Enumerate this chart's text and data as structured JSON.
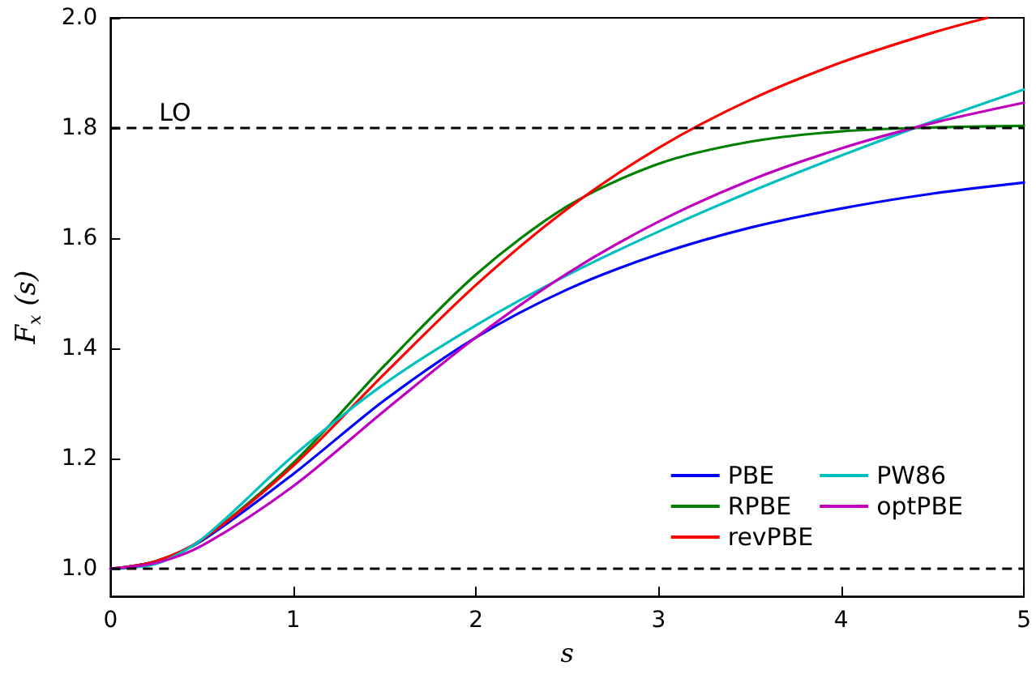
{
  "chart_data": {
    "type": "line",
    "xlabel": "s",
    "ylabel": "F$_{x}$ (s)",
    "x": [
      0,
      0.25,
      0.5,
      1,
      1.5,
      2,
      2.5,
      3,
      3.5,
      4,
      4.5,
      5
    ],
    "series": [
      {
        "name": "PBE",
        "color": "#0000ff",
        "values": [
          1.0,
          1.014,
          1.051,
          1.172,
          1.306,
          1.42,
          1.507,
          1.571,
          1.619,
          1.654,
          1.681,
          1.701
        ]
      },
      {
        "name": "RPBE",
        "color": "#008000",
        "values": [
          1.0,
          1.014,
          1.053,
          1.192,
          1.369,
          1.534,
          1.658,
          1.735,
          1.775,
          1.794,
          1.801,
          1.804
        ]
      },
      {
        "name": "revPBE",
        "color": "#ff0000",
        "x": [
          0,
          0.25,
          0.5,
          1,
          1.5,
          2,
          2.5,
          3,
          3.5,
          4,
          4.5,
          4.8
        ],
        "values": [
          1.0,
          1.014,
          1.053,
          1.187,
          1.354,
          1.515,
          1.653,
          1.764,
          1.851,
          1.919,
          1.973,
          2.0
        ]
      },
      {
        "name": "PW86",
        "color": "#00bfbf",
        "values": [
          1.0,
          1.009,
          1.054,
          1.205,
          1.336,
          1.442,
          1.533,
          1.612,
          1.684,
          1.75,
          1.812,
          1.87
        ]
      },
      {
        "name": "optPBE",
        "color": "#bf00bf",
        "values": [
          1.0,
          1.011,
          1.042,
          1.15,
          1.287,
          1.42,
          1.536,
          1.63,
          1.705,
          1.763,
          1.809,
          1.846
        ]
      }
    ],
    "xlim": [
      0,
      5
    ],
    "xticks": [
      0,
      1,
      2,
      3,
      4,
      5
    ],
    "ylim": [
      0.95,
      2.0
    ],
    "yticks": [
      {
        "value": 1,
        "label": "1.0"
      },
      {
        "value": 1.2,
        "label": "1.2"
      },
      {
        "value": 1.4,
        "label": "1.4"
      },
      {
        "value": 1.6,
        "label": "1.6"
      },
      {
        "value": 1.8,
        "label": "1.8"
      },
      {
        "value": 2,
        "label": "2.0"
      }
    ],
    "ref_lines": [
      {
        "axis": "y",
        "value": 1.804,
        "label": "LO",
        "color": "#000000",
        "line_style": "dashed"
      },
      {
        "axis": "y",
        "value": 1.0,
        "label": null,
        "color": "#000000",
        "line_style": "dashed"
      }
    ],
    "grid": false,
    "legend": "lower right",
    "marker": "none",
    "line_style": "solid"
  }
}
